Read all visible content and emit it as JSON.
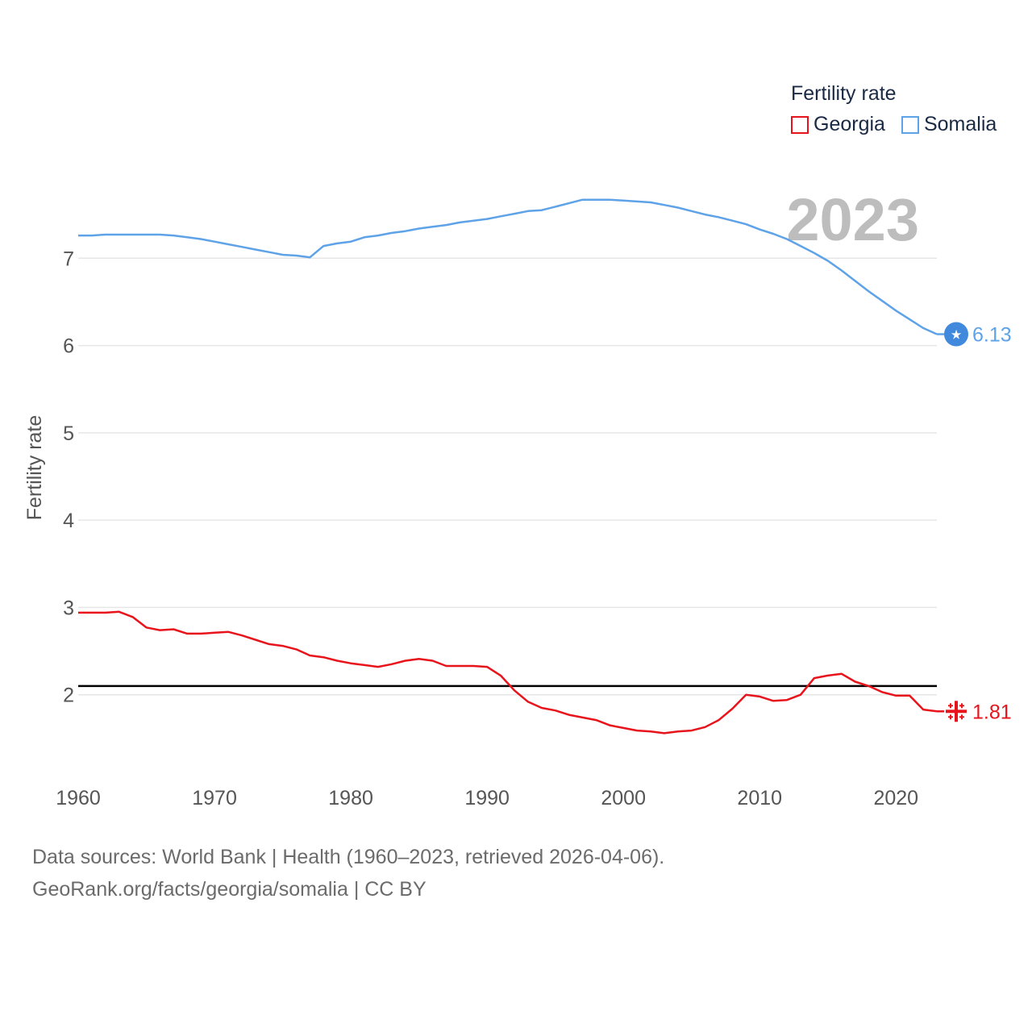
{
  "legend": {
    "title": "Fertility rate",
    "items": [
      {
        "label": "Georgia",
        "color": "#e8141c"
      },
      {
        "label": "Somalia",
        "color": "#5ea2e8"
      }
    ]
  },
  "footer": {
    "line1": "Data sources: World Bank | Health (1960–2023, retrieved 2026-04-06).",
    "line2": "GeoRank.org/facts/georgia/somalia | CC BY"
  },
  "chart_data": {
    "type": "line",
    "title": "Fertility rate",
    "xlabel": "",
    "ylabel": "Fertility rate",
    "year_label": "2023",
    "xlim": [
      1960,
      2023
    ],
    "ylim": [
      1.0,
      8.0
    ],
    "x_ticks": [
      1960,
      1970,
      1980,
      1990,
      2000,
      2010,
      2020
    ],
    "y_ticks": [
      2,
      3,
      4,
      5,
      6,
      7
    ],
    "reference_line": {
      "value": 2.1,
      "color": "#000000"
    },
    "grid": true,
    "x": [
      1960,
      1961,
      1962,
      1963,
      1964,
      1965,
      1966,
      1967,
      1968,
      1969,
      1970,
      1971,
      1972,
      1973,
      1974,
      1975,
      1976,
      1977,
      1978,
      1979,
      1980,
      1981,
      1982,
      1983,
      1984,
      1985,
      1986,
      1987,
      1988,
      1989,
      1990,
      1991,
      1992,
      1993,
      1994,
      1995,
      1996,
      1997,
      1998,
      1999,
      2000,
      2001,
      2002,
      2003,
      2004,
      2005,
      2006,
      2007,
      2008,
      2009,
      2010,
      2011,
      2012,
      2013,
      2014,
      2015,
      2016,
      2017,
      2018,
      2019,
      2020,
      2021,
      2022,
      2023
    ],
    "series": [
      {
        "name": "Somalia",
        "color": "#5ea2e8",
        "end_label": "6.13",
        "marker_icon": "star-flag-icon",
        "values": [
          7.26,
          7.26,
          7.27,
          7.27,
          7.27,
          7.27,
          7.27,
          7.26,
          7.24,
          7.22,
          7.19,
          7.16,
          7.13,
          7.1,
          7.07,
          7.04,
          7.03,
          7.01,
          7.14,
          7.17,
          7.19,
          7.24,
          7.26,
          7.29,
          7.31,
          7.34,
          7.36,
          7.38,
          7.41,
          7.43,
          7.45,
          7.48,
          7.51,
          7.54,
          7.55,
          7.59,
          7.63,
          7.67,
          7.67,
          7.67,
          7.66,
          7.65,
          7.64,
          7.61,
          7.58,
          7.54,
          7.5,
          7.47,
          7.43,
          7.39,
          7.33,
          7.28,
          7.22,
          7.14,
          7.06,
          6.97,
          6.86,
          6.74,
          6.62,
          6.51,
          6.4,
          6.3,
          6.2,
          6.13
        ]
      },
      {
        "name": "Georgia",
        "color": "#e8141c",
        "end_label": "1.81",
        "marker_icon": "jerusalem-cross-flag-icon",
        "values": [
          2.94,
          2.94,
          2.94,
          2.95,
          2.89,
          2.77,
          2.74,
          2.75,
          2.7,
          2.7,
          2.71,
          2.72,
          2.68,
          2.63,
          2.58,
          2.56,
          2.52,
          2.45,
          2.43,
          2.39,
          2.36,
          2.34,
          2.32,
          2.35,
          2.39,
          2.41,
          2.39,
          2.33,
          2.33,
          2.33,
          2.32,
          2.22,
          2.05,
          1.92,
          1.85,
          1.82,
          1.77,
          1.74,
          1.71,
          1.65,
          1.62,
          1.59,
          1.58,
          1.56,
          1.58,
          1.59,
          1.63,
          1.71,
          1.84,
          2.0,
          1.98,
          1.93,
          1.94,
          2.0,
          2.19,
          2.22,
          2.24,
          2.15,
          2.1,
          2.03,
          1.99,
          1.99,
          1.83,
          1.81
        ]
      }
    ]
  }
}
